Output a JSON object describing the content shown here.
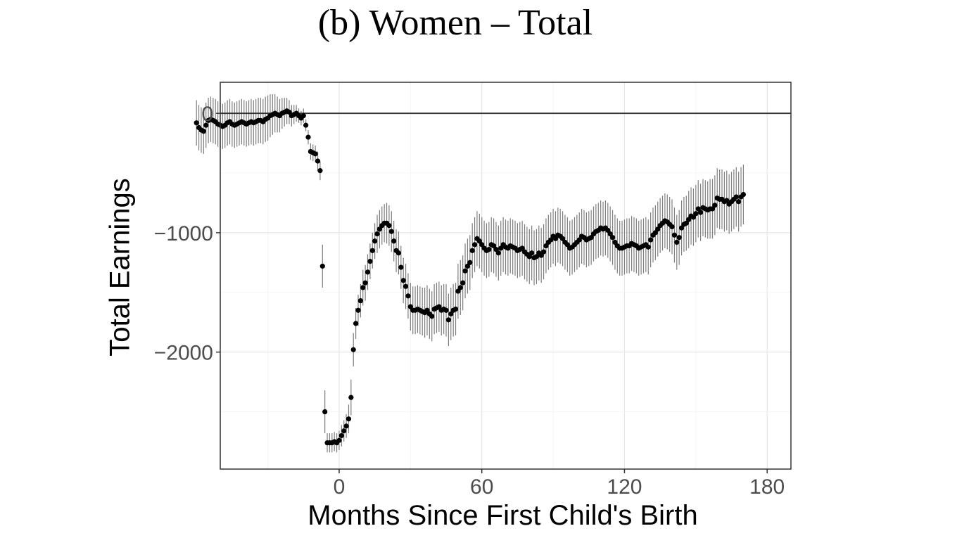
{
  "chart_data": {
    "type": "scatter",
    "title": "(b) Women – Total",
    "xlabel": "Months Since First Child's Birth",
    "ylabel": "Total Earnings",
    "xlim": [
      -50,
      190
    ],
    "ylim": [
      -2980,
      260
    ],
    "x_ticks": [
      0,
      60,
      120,
      180
    ],
    "x_tick_labels": [
      "0",
      "60",
      "120",
      "180"
    ],
    "y_ticks": [
      0,
      -1000,
      -2000
    ],
    "y_tick_labels": [
      "0",
      "−1000",
      "−2000"
    ],
    "reference_line_y": 0,
    "grid": true,
    "legend": "none",
    "marker_color": "#000000",
    "errorbar_color": "#808080",
    "series": [
      {
        "points": [
          [
            -60,
            -80,
            190
          ],
          [
            -59,
            -120,
            190
          ],
          [
            -58,
            -140,
            190
          ],
          [
            -57,
            -150,
            190
          ],
          [
            -56,
            -100,
            190
          ],
          [
            -55,
            -60,
            190
          ],
          [
            -54,
            -50,
            190
          ],
          [
            -53,
            -60,
            190
          ],
          [
            -52,
            -70,
            190
          ],
          [
            -51,
            -90,
            190
          ],
          [
            -50,
            -100,
            190
          ],
          [
            -49,
            -110,
            190
          ],
          [
            -48,
            -100,
            190
          ],
          [
            -47,
            -80,
            190
          ],
          [
            -46,
            -70,
            190
          ],
          [
            -45,
            -90,
            190
          ],
          [
            -44,
            -100,
            190
          ],
          [
            -43,
            -90,
            190
          ],
          [
            -42,
            -80,
            190
          ],
          [
            -41,
            -70,
            190
          ],
          [
            -40,
            -80,
            190
          ],
          [
            -39,
            -90,
            190
          ],
          [
            -38,
            -80,
            190
          ],
          [
            -37,
            -70,
            190
          ],
          [
            -36,
            -80,
            190
          ],
          [
            -35,
            -70,
            190
          ],
          [
            -34,
            -60,
            190
          ],
          [
            -33,
            -60,
            190
          ],
          [
            -32,
            -70,
            190
          ],
          [
            -31,
            -50,
            190
          ],
          [
            -30,
            -40,
            190
          ],
          [
            -29,
            -20,
            180
          ],
          [
            -28,
            -10,
            170
          ],
          [
            -27,
            0,
            160
          ],
          [
            -26,
            -10,
            150
          ],
          [
            -25,
            -20,
            140
          ],
          [
            -24,
            0,
            130
          ],
          [
            -23,
            10,
            120
          ],
          [
            -22,
            20,
            110
          ],
          [
            -21,
            10,
            100
          ],
          [
            -20,
            -20,
            90
          ],
          [
            -19,
            -10,
            80
          ],
          [
            -18,
            0,
            70
          ],
          [
            -17,
            -20,
            60
          ],
          [
            -16,
            -40,
            60
          ],
          [
            -15,
            -20,
            60
          ],
          [
            -14,
            -100,
            50
          ],
          [
            -13,
            -200,
            60
          ],
          [
            -12,
            -320,
            70
          ],
          [
            -11,
            -330,
            70
          ],
          [
            -10,
            -340,
            70
          ],
          [
            -9,
            -400,
            80
          ],
          [
            -8,
            -480,
            80
          ],
          [
            -7,
            -1280,
            180
          ],
          [
            -6,
            -2500,
            180
          ],
          [
            -5,
            -2760,
            80
          ],
          [
            -4,
            -2760,
            80
          ],
          [
            -3,
            -2760,
            80
          ],
          [
            -2,
            -2750,
            80
          ],
          [
            -1,
            -2760,
            80
          ],
          [
            0,
            -2740,
            80
          ],
          [
            1,
            -2700,
            90
          ],
          [
            2,
            -2660,
            90
          ],
          [
            3,
            -2620,
            100
          ],
          [
            4,
            -2560,
            120
          ],
          [
            5,
            -2380,
            150
          ],
          [
            6,
            -1980,
            140
          ],
          [
            7,
            -1760,
            130
          ],
          [
            8,
            -1650,
            130
          ],
          [
            9,
            -1570,
            140
          ],
          [
            10,
            -1460,
            150
          ],
          [
            11,
            -1420,
            150
          ],
          [
            12,
            -1330,
            150
          ],
          [
            13,
            -1240,
            150
          ],
          [
            14,
            -1150,
            150
          ],
          [
            15,
            -1070,
            150
          ],
          [
            16,
            -1010,
            160
          ],
          [
            17,
            -970,
            160
          ],
          [
            18,
            -940,
            160
          ],
          [
            19,
            -920,
            160
          ],
          [
            20,
            -920,
            170
          ],
          [
            21,
            -940,
            170
          ],
          [
            22,
            -990,
            170
          ],
          [
            23,
            -1070,
            170
          ],
          [
            24,
            -1150,
            180
          ],
          [
            25,
            -1170,
            180
          ],
          [
            26,
            -1290,
            180
          ],
          [
            27,
            -1400,
            190
          ],
          [
            28,
            -1450,
            190
          ],
          [
            29,
            -1530,
            190
          ],
          [
            30,
            -1620,
            200
          ],
          [
            31,
            -1650,
            200
          ],
          [
            32,
            -1650,
            200
          ],
          [
            33,
            -1640,
            200
          ],
          [
            34,
            -1650,
            200
          ],
          [
            35,
            -1660,
            200
          ],
          [
            36,
            -1670,
            210
          ],
          [
            37,
            -1650,
            210
          ],
          [
            38,
            -1680,
            210
          ],
          [
            39,
            -1700,
            210
          ],
          [
            40,
            -1640,
            210
          ],
          [
            41,
            -1630,
            210
          ],
          [
            42,
            -1620,
            210
          ],
          [
            43,
            -1650,
            210
          ],
          [
            44,
            -1640,
            210
          ],
          [
            45,
            -1650,
            220
          ],
          [
            46,
            -1730,
            220
          ],
          [
            47,
            -1680,
            220
          ],
          [
            48,
            -1650,
            220
          ],
          [
            49,
            -1640,
            220
          ],
          [
            50,
            -1490,
            230
          ],
          [
            51,
            -1460,
            230
          ],
          [
            52,
            -1420,
            230
          ],
          [
            53,
            -1320,
            230
          ],
          [
            54,
            -1280,
            230
          ],
          [
            55,
            -1250,
            230
          ],
          [
            56,
            -1150,
            230
          ],
          [
            57,
            -1100,
            230
          ],
          [
            58,
            -1050,
            230
          ],
          [
            59,
            -1070,
            230
          ],
          [
            60,
            -1100,
            230
          ],
          [
            61,
            -1130,
            230
          ],
          [
            62,
            -1150,
            230
          ],
          [
            63,
            -1140,
            230
          ],
          [
            64,
            -1100,
            230
          ],
          [
            65,
            -1110,
            230
          ],
          [
            66,
            -1140,
            230
          ],
          [
            67,
            -1170,
            230
          ],
          [
            68,
            -1130,
            230
          ],
          [
            69,
            -1100,
            230
          ],
          [
            70,
            -1120,
            230
          ],
          [
            71,
            -1130,
            230
          ],
          [
            72,
            -1110,
            230
          ],
          [
            73,
            -1120,
            230
          ],
          [
            74,
            -1130,
            230
          ],
          [
            75,
            -1150,
            230
          ],
          [
            76,
            -1140,
            230
          ],
          [
            77,
            -1130,
            230
          ],
          [
            78,
            -1160,
            230
          ],
          [
            79,
            -1180,
            230
          ],
          [
            80,
            -1200,
            230
          ],
          [
            81,
            -1170,
            230
          ],
          [
            82,
            -1210,
            230
          ],
          [
            83,
            -1200,
            230
          ],
          [
            84,
            -1170,
            230
          ],
          [
            85,
            -1190,
            230
          ],
          [
            86,
            -1160,
            230
          ],
          [
            87,
            -1110,
            230
          ],
          [
            88,
            -1080,
            230
          ],
          [
            89,
            -1060,
            230
          ],
          [
            90,
            -1030,
            230
          ],
          [
            91,
            -1050,
            230
          ],
          [
            92,
            -1020,
            230
          ],
          [
            93,
            -1030,
            230
          ],
          [
            94,
            -1050,
            230
          ],
          [
            95,
            -1080,
            230
          ],
          [
            96,
            -1100,
            230
          ],
          [
            97,
            -1130,
            230
          ],
          [
            98,
            -1120,
            230
          ],
          [
            99,
            -1100,
            230
          ],
          [
            100,
            -1080,
            230
          ],
          [
            101,
            -1060,
            230
          ],
          [
            102,
            -1030,
            230
          ],
          [
            103,
            -1040,
            230
          ],
          [
            104,
            -1060,
            230
          ],
          [
            105,
            -1050,
            230
          ],
          [
            106,
            -1040,
            230
          ],
          [
            107,
            -1010,
            230
          ],
          [
            108,
            -990,
            230
          ],
          [
            109,
            -980,
            230
          ],
          [
            110,
            -960,
            230
          ],
          [
            111,
            -970,
            230
          ],
          [
            112,
            -960,
            230
          ],
          [
            113,
            -980,
            230
          ],
          [
            114,
            -1010,
            230
          ],
          [
            115,
            -1040,
            230
          ],
          [
            116,
            -1080,
            230
          ],
          [
            117,
            -1110,
            230
          ],
          [
            118,
            -1130,
            230
          ],
          [
            119,
            -1130,
            230
          ],
          [
            120,
            -1120,
            230
          ],
          [
            121,
            -1110,
            230
          ],
          [
            122,
            -1110,
            230
          ],
          [
            123,
            -1090,
            230
          ],
          [
            124,
            -1100,
            230
          ],
          [
            125,
            -1110,
            230
          ],
          [
            126,
            -1130,
            230
          ],
          [
            127,
            -1120,
            230
          ],
          [
            128,
            -1110,
            230
          ],
          [
            129,
            -1100,
            230
          ],
          [
            130,
            -1120,
            230
          ],
          [
            131,
            -1060,
            230
          ],
          [
            132,
            -1020,
            230
          ],
          [
            133,
            -1000,
            230
          ],
          [
            134,
            -970,
            230
          ],
          [
            135,
            -940,
            230
          ],
          [
            136,
            -920,
            230
          ],
          [
            137,
            -900,
            230
          ],
          [
            138,
            -910,
            230
          ],
          [
            139,
            -930,
            230
          ],
          [
            140,
            -950,
            230
          ],
          [
            141,
            -1020,
            230
          ],
          [
            142,
            -1080,
            230
          ],
          [
            143,
            -1040,
            230
          ],
          [
            144,
            -960,
            230
          ],
          [
            145,
            -930,
            230
          ],
          [
            146,
            -920,
            230
          ],
          [
            147,
            -890,
            240
          ],
          [
            148,
            -860,
            240
          ],
          [
            149,
            -870,
            240
          ],
          [
            150,
            -840,
            240
          ],
          [
            151,
            -800,
            240
          ],
          [
            152,
            -830,
            240
          ],
          [
            153,
            -790,
            240
          ],
          [
            154,
            -800,
            240
          ],
          [
            155,
            -810,
            240
          ],
          [
            156,
            -800,
            250
          ],
          [
            157,
            -800,
            250
          ],
          [
            158,
            -770,
            250
          ],
          [
            159,
            -710,
            250
          ],
          [
            160,
            -720,
            250
          ],
          [
            161,
            -720,
            250
          ],
          [
            162,
            -740,
            250
          ],
          [
            163,
            -730,
            250
          ],
          [
            164,
            -760,
            250
          ],
          [
            165,
            -740,
            250
          ],
          [
            166,
            -720,
            250
          ],
          [
            167,
            -700,
            250
          ],
          [
            168,
            -740,
            250
          ],
          [
            169,
            -700,
            250
          ],
          [
            170,
            -680,
            250
          ]
        ]
      }
    ]
  }
}
